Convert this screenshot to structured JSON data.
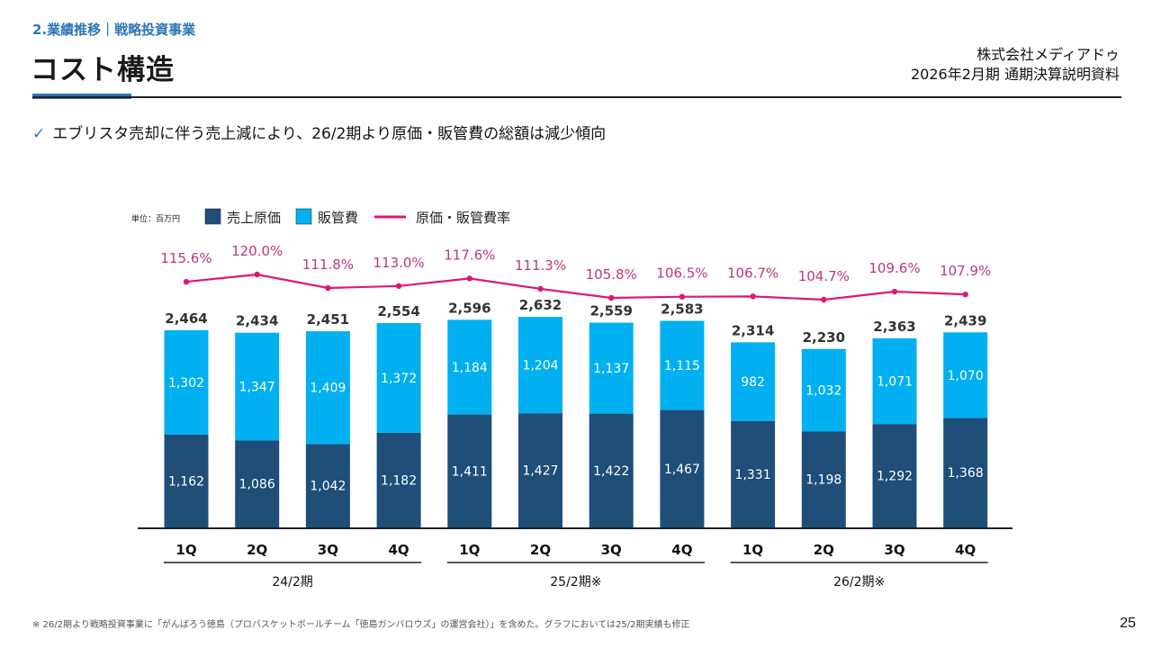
{
  "header": {
    "section": "2.業績推移｜戦略投資事業",
    "title": "コスト構造",
    "company": "株式会社メディアドゥ",
    "document": "2026年2月期 通期決算説明資料"
  },
  "bullet": {
    "icon": "check-icon",
    "text": "エブリスタ売却に伴う売上減により、26/2期より原価・販管費の総額は減少傾向"
  },
  "footnote": "※ 26/2期より戦略投資事業に「がんばろう徳島（プロバスケットボールチーム「徳島ガンバロウズ」の運営会社）」を含めた。グラフにおいては25/2期実績も修正",
  "page_number": "25",
  "colors": {
    "cost_of_sales": "#1f4e79",
    "sga": "#00b0f0",
    "rate_line": "#e0157a",
    "rate_label": "#c0357f",
    "accent": "#2e75b6"
  },
  "chart_data": {
    "type": "bar",
    "stacked": true,
    "unit_label": "単位：百万円",
    "legend": [
      {
        "name": "売上原価",
        "kind": "box",
        "color": "#1f4e79"
      },
      {
        "name": "販管費",
        "kind": "box",
        "color": "#00b0f0"
      },
      {
        "name": "原価・販管費率",
        "kind": "line",
        "color": "#e0157a"
      }
    ],
    "legend_position": "top-left",
    "categories": [
      "1Q",
      "2Q",
      "3Q",
      "4Q",
      "1Q",
      "2Q",
      "3Q",
      "4Q",
      "1Q",
      "2Q",
      "3Q",
      "4Q"
    ],
    "groups": [
      {
        "label": "24/2期",
        "span": [
          0,
          3
        ]
      },
      {
        "label": "25/2期※",
        "span": [
          4,
          7
        ]
      },
      {
        "label": "26/2期※",
        "span": [
          8,
          11
        ]
      }
    ],
    "series": [
      {
        "name": "売上原価",
        "values": [
          1162,
          1086,
          1042,
          1182,
          1411,
          1427,
          1422,
          1467,
          1331,
          1198,
          1292,
          1368
        ]
      },
      {
        "name": "販管費",
        "values": [
          1302,
          1347,
          1409,
          1372,
          1184,
          1204,
          1137,
          1115,
          982,
          1032,
          1071,
          1070
        ]
      }
    ],
    "totals": [
      2464,
      2434,
      2451,
      2554,
      2596,
      2632,
      2559,
      2583,
      2314,
      2230,
      2363,
      2439
    ],
    "rate": {
      "name": "原価・販管費率",
      "values": [
        115.6,
        120.0,
        111.8,
        113.0,
        117.6,
        111.3,
        105.8,
        106.5,
        106.7,
        104.7,
        109.6,
        107.9
      ],
      "labels": [
        "115.6%",
        "120.0%",
        "111.8%",
        "113.0%",
        "117.6%",
        "111.3%",
        "105.8%",
        "106.5%",
        "106.7%",
        "104.7%",
        "109.6%",
        "107.9%"
      ]
    },
    "labels": {
      "cost_of_sales": [
        "1,162",
        "1,086",
        "1,042",
        "1,182",
        "1,411",
        "1,427",
        "1,422",
        "1,467",
        "1,331",
        "1,198",
        "1,292",
        "1,368"
      ],
      "sga": [
        "1,302",
        "1,347",
        "1,409",
        "1,372",
        "1,184",
        "1,204",
        "1,137",
        "1,115",
        "982",
        "1,032",
        "1,071",
        "1,070"
      ],
      "totals": [
        "2,464",
        "2,434",
        "2,451",
        "2,554",
        "2,596",
        "2,632",
        "2,559",
        "2,583",
        "2,314",
        "2,230",
        "2,363",
        "2,439"
      ]
    },
    "ylim": [
      0,
      2900
    ],
    "grid": false
  }
}
